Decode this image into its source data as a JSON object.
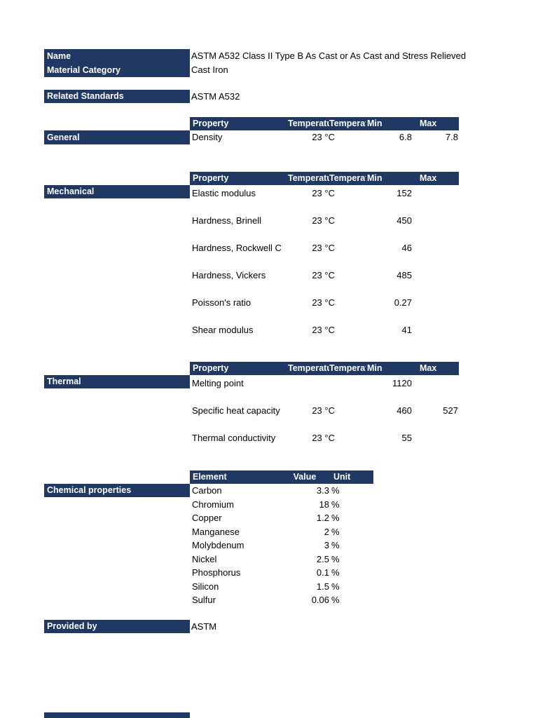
{
  "colors": {
    "header_navy": "#1f3864"
  },
  "meta": {
    "name_label": "Name",
    "name_value": "ASTM A532 Class II Type B As Cast or As Cast and Stress Relieved",
    "category_label": "Material Category",
    "category_value": "Cast Iron",
    "related_label": "Related Standards",
    "related_value": "ASTM A532",
    "provided_label": "Provided by",
    "provided_value": "ASTM"
  },
  "property_columns": {
    "property": "Property",
    "temp1": "Temperatu",
    "temp2": "Temperatu",
    "min": "Min",
    "max": "Max"
  },
  "chemical_columns": {
    "element": "Element",
    "value": "Value",
    "unit": "Unit"
  },
  "general": {
    "label": "General",
    "rows": [
      {
        "property": "Density",
        "temp": "23 °C",
        "min": "6.8",
        "max": "7.8"
      }
    ]
  },
  "mechanical": {
    "label": "Mechanical",
    "rows": [
      {
        "property": "Elastic modulus",
        "temp": "23 °C",
        "min": "152",
        "max": ""
      },
      {
        "property": "Hardness, Brinell",
        "temp": "23 °C",
        "min": "450",
        "max": ""
      },
      {
        "property": "Hardness, Rockwell C",
        "temp": "23 °C",
        "min": "46",
        "max": ""
      },
      {
        "property": "Hardness, Vickers",
        "temp": "23 °C",
        "min": "485",
        "max": ""
      },
      {
        "property": "Poisson's ratio",
        "temp": "23 °C",
        "min": "0.27",
        "max": ""
      },
      {
        "property": "Shear modulus",
        "temp": "23 °C",
        "min": "41",
        "max": ""
      }
    ]
  },
  "thermal": {
    "label": "Thermal",
    "rows": [
      {
        "property": "Melting point",
        "temp": "",
        "min": "1120",
        "max": ""
      },
      {
        "property": "Specific heat capacity",
        "temp": "23 °C",
        "min": "460",
        "max": "527"
      },
      {
        "property": "Thermal conductivity",
        "temp": "23 °C",
        "min": "55",
        "max": ""
      }
    ]
  },
  "chemical": {
    "label": "Chemical properties",
    "rows": [
      {
        "element": "Carbon",
        "value": "3.3",
        "unit": "%"
      },
      {
        "element": "Chromium",
        "value": "18",
        "unit": "%"
      },
      {
        "element": "Copper",
        "value": "1.2",
        "unit": "%"
      },
      {
        "element": "Manganese",
        "value": "2",
        "unit": "%"
      },
      {
        "element": "Molybdenum",
        "value": "3",
        "unit": "%"
      },
      {
        "element": "Nickel",
        "value": "2.5",
        "unit": "%"
      },
      {
        "element": "Phosphorus",
        "value": "0.1",
        "unit": "%"
      },
      {
        "element": "Silicon",
        "value": "1.5",
        "unit": "%"
      },
      {
        "element": "Sulfur",
        "value": "0.06",
        "unit": "%"
      }
    ]
  }
}
